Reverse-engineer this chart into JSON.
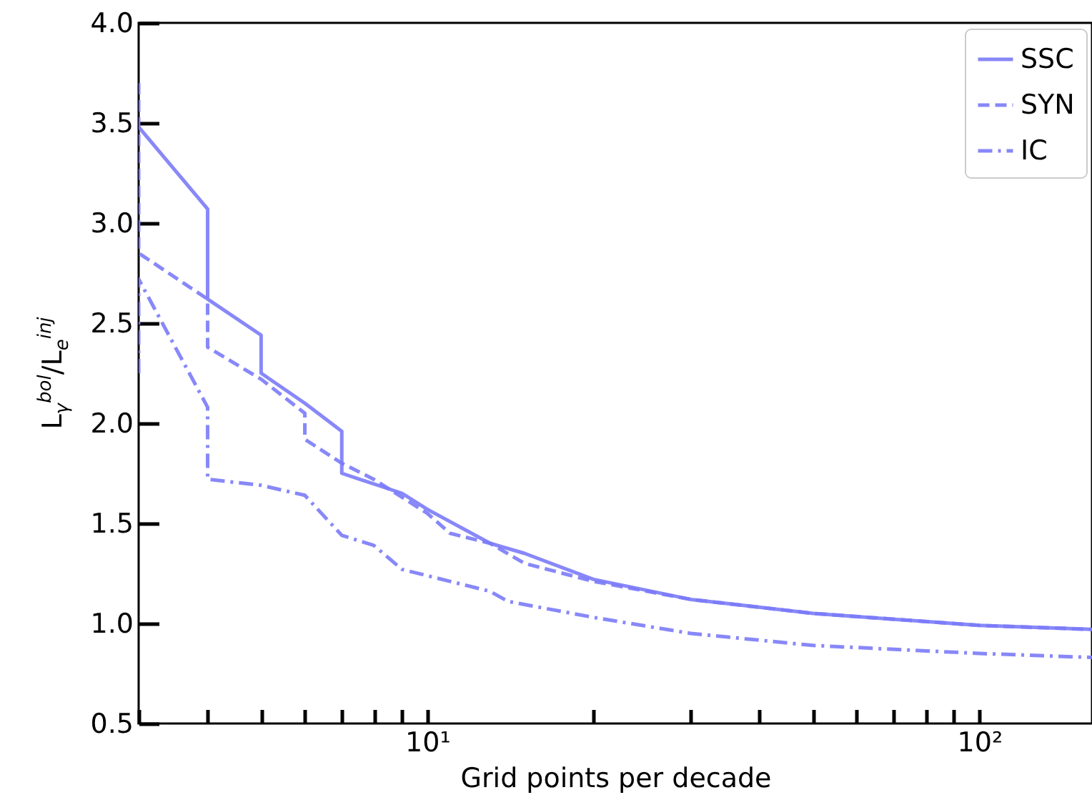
{
  "chart_data": {
    "type": "line",
    "xlabel": "Grid points per decade",
    "ylabel": "L$_{γ}$$^{bol}$/L$_{e}$$^{inj}$",
    "log": "x",
    "xlim": [
      3,
      160
    ],
    "ylim": [
      0.5,
      4.0
    ],
    "xticks": [
      {
        "value": 3,
        "label": null
      },
      {
        "value": 4,
        "label": null
      },
      {
        "value": 5,
        "label": null
      },
      {
        "value": 6,
        "label": null
      },
      {
        "value": 7,
        "label": null
      },
      {
        "value": 8,
        "label": null
      },
      {
        "value": 9,
        "label": null
      },
      {
        "value": 10,
        "label": "10¹"
      },
      {
        "value": 20,
        "label": null
      },
      {
        "value": 30,
        "label": null
      },
      {
        "value": 40,
        "label": null
      },
      {
        "value": 50,
        "label": null
      },
      {
        "value": 60,
        "label": null
      },
      {
        "value": 70,
        "label": null
      },
      {
        "value": 80,
        "label": null
      },
      {
        "value": 90,
        "label": null
      },
      {
        "value": 100,
        "label": "10²"
      }
    ],
    "yticks": [
      0.5,
      {
        "value": 1,
        "label": "1.0"
      },
      1.5,
      {
        "value": 2,
        "label": "2.0"
      },
      2.5,
      {
        "value": 3,
        "label": "3.0"
      },
      3.5,
      {
        "value": 4,
        "label": "4.0"
      }
    ],
    "grid": false,
    "legend": "top right",
    "series": [
      {
        "name": "SSC",
        "color": "#7b7bf8",
        "line_style": "solid",
        "x": [
          3,
          4,
          4,
          5,
          5,
          6,
          7,
          7,
          9,
          10,
          13,
          15,
          20,
          30,
          50,
          100,
          160
        ],
        "values": [
          3.48,
          3.07,
          2.62,
          2.44,
          2.25,
          2.1,
          1.96,
          1.75,
          1.65,
          1.57,
          1.4,
          1.35,
          1.22,
          1.12,
          1.05,
          0.99,
          0.97
        ]
      },
      {
        "name": "SYN",
        "color": "#7b7bf8",
        "line_style": "dashed",
        "x": [
          3,
          3,
          4,
          4,
          5,
          6,
          6,
          7,
          8,
          10,
          11,
          13,
          15,
          20,
          30,
          50,
          100,
          160
        ],
        "values": [
          3.7,
          2.85,
          2.62,
          2.38,
          2.22,
          2.05,
          1.92,
          1.8,
          1.72,
          1.55,
          1.45,
          1.4,
          1.3,
          1.21,
          1.12,
          1.05,
          0.99,
          0.97
        ]
      },
      {
        "name": "IC",
        "color": "#7b7bf8",
        "line_style": "dashdot",
        "x": [
          3,
          3,
          4,
          4,
          5,
          6,
          7,
          8,
          9,
          13,
          14,
          20,
          30,
          50,
          100,
          160
        ],
        "values": [
          2.25,
          2.72,
          2.08,
          1.72,
          1.69,
          1.64,
          1.44,
          1.39,
          1.27,
          1.16,
          1.11,
          1.03,
          0.95,
          0.89,
          0.85,
          0.83
        ]
      }
    ]
  }
}
